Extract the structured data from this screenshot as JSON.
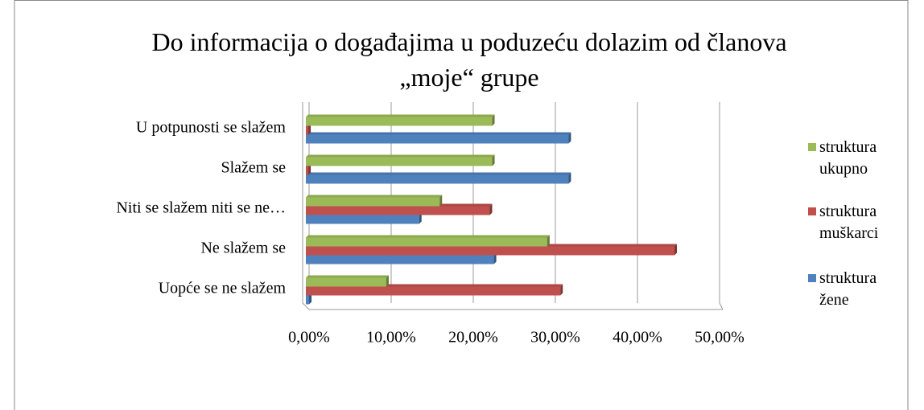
{
  "chart_data": {
    "type": "barh",
    "title": "Do informacija o događajima u poduzeću dolazim od članova „moje“ grupe",
    "categories": [
      "U potpunosti se slažem",
      "Slažem se",
      "Niti se slažem niti se ne…",
      "Ne slažem se",
      "Uopće se ne slažem"
    ],
    "series": [
      {
        "name": "struktura žene",
        "color": "#4f81bd",
        "values": [
          32,
          32,
          13.8,
          22.9,
          0.4
        ]
      },
      {
        "name": "struktura muškarci",
        "color": "#c0504d",
        "values": [
          0.3,
          0.3,
          22.4,
          44.9,
          31
        ]
      },
      {
        "name": "struktura ukupno",
        "color": "#9bbb59",
        "values": [
          22.7,
          22.7,
          16.3,
          29.4,
          9.8
        ]
      }
    ],
    "xlim": [
      0,
      50
    ],
    "xticks": [
      {
        "value": 0,
        "label": "0,00%"
      },
      {
        "value": 10,
        "label": "10,00%"
      },
      {
        "value": 20,
        "label": "20,00%"
      },
      {
        "value": 30,
        "label": "30,00%"
      },
      {
        "value": 40,
        "label": "40,00%"
      },
      {
        "value": 50,
        "label": "50,00%"
      }
    ],
    "grid": true,
    "legend": "right"
  }
}
